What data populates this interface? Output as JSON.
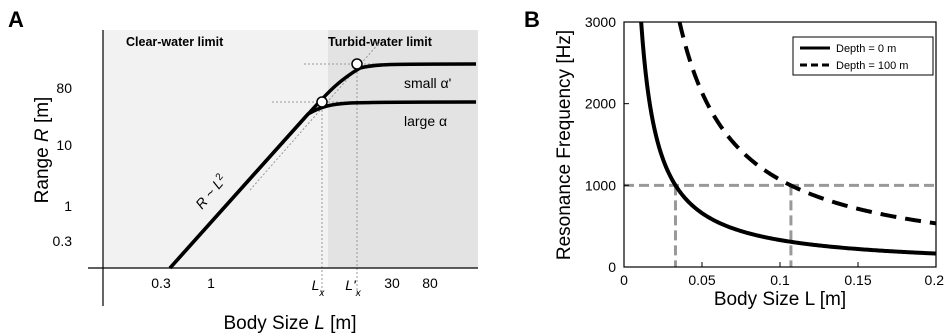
{
  "chart_data": [
    {
      "panel": "A",
      "type": "line",
      "xscale": "log",
      "yscale": "log",
      "xlabel": "Body Size L [m]",
      "ylabel": "Range R [m]",
      "xticks": [
        "0.3",
        "1",
        "L_x",
        "L'_x",
        "30",
        "80"
      ],
      "yticks": [
        "0.3",
        "1",
        "10",
        "80"
      ],
      "x_tick_values": [
        0.3,
        1,
        12,
        18,
        30,
        80
      ],
      "y_tick_values": [
        0.3,
        1,
        10,
        80
      ],
      "xlim": [
        0.015,
        250
      ],
      "ylim": [
        0.1,
        600
      ],
      "regions": [
        {
          "label": "Clear-water limit",
          "x_range": [
            0.015,
            14
          ],
          "color": "#f2f2f2"
        },
        {
          "label": "Turbid-water limit",
          "x_range": [
            14,
            250
          ],
          "color": "#e3e3e3"
        }
      ],
      "annotations": [
        {
          "text": "R ~ L²",
          "position": "along-slope"
        },
        {
          "text": "small α'"
        },
        {
          "text": "large α"
        }
      ],
      "series": [
        {
          "name": "small α'",
          "plateau": 180,
          "knee_x": 18,
          "values_note": "R rises as L² then saturates"
        },
        {
          "name": "large α",
          "plateau": 52,
          "knee_x": 12,
          "values_note": "R rises as L² then saturates"
        }
      ],
      "markers": [
        {
          "x": 12,
          "y": 52
        },
        {
          "x": 18,
          "y": 180
        }
      ],
      "grid": false
    },
    {
      "panel": "B",
      "type": "line",
      "xlabel": "Body Size L [m]",
      "ylabel": "Resonance Frequency [Hz]",
      "xlim": [
        0,
        0.2
      ],
      "ylim": [
        0,
        3000
      ],
      "xticks": [
        "0",
        "0.05",
        "0.1",
        "0.15",
        "0.2"
      ],
      "yticks": [
        "0",
        "1000",
        "2000",
        "3000"
      ],
      "x_tick_values": [
        0,
        0.05,
        0.1,
        0.15,
        0.2
      ],
      "y_tick_values": [
        0,
        1000,
        2000,
        3000
      ],
      "legend_position": "top-right",
      "series": [
        {
          "name": "Depth = 0 m",
          "style": "solid",
          "x": [
            0.011,
            0.015,
            0.02,
            0.025,
            0.033,
            0.04,
            0.05,
            0.07,
            0.1,
            0.13,
            0.16,
            0.2
          ],
          "y": [
            3000,
            2200,
            1650,
            1320,
            1000,
            825,
            660,
            471,
            330,
            254,
            206,
            165
          ]
        },
        {
          "name": "Depth = 100 m",
          "style": "dashed",
          "x": [
            0.035,
            0.04,
            0.05,
            0.06,
            0.07,
            0.08,
            0.09,
            0.107,
            0.12,
            0.14,
            0.16,
            0.18,
            0.2
          ],
          "y": [
            3000,
            2675,
            2140,
            1783,
            1529,
            1338,
            1189,
            1000,
            892,
            764,
            669,
            594,
            535
          ]
        }
      ],
      "reference_lines": [
        {
          "axis": "y",
          "value": 1000
        },
        {
          "axis": "x",
          "value": 0.033
        },
        {
          "axis": "x",
          "value": 0.107
        }
      ],
      "grid": false
    }
  ],
  "panel_a": {
    "label": "A",
    "region_clear": "Clear-water limit",
    "region_turbid": "Turbid-water limit",
    "xlabel_pre": "Body Size ",
    "xlabel_var": "L",
    "xlabel_post": " [m]",
    "ylabel_pre": "Range ",
    "ylabel_var": "R",
    "ylabel_post": " [m]",
    "slope_label_pre": "R ~ L",
    "slope_label_exp": "2",
    "small_alpha": "small α'",
    "large_alpha": "large α",
    "xtick_lx": "L",
    "xtick_lx_sub": "x",
    "xtick_lpx": "L'",
    "xtick_lpx_sub": "x"
  },
  "panel_b": {
    "label": "B",
    "legend_solid": "Depth = 0 m",
    "legend_dashed": "Depth = 100 m"
  },
  "colors": {
    "curve": "#000000",
    "guide": "#999999",
    "clear_region": "#f2f2f2",
    "turbid_region": "#e3e3e3"
  }
}
